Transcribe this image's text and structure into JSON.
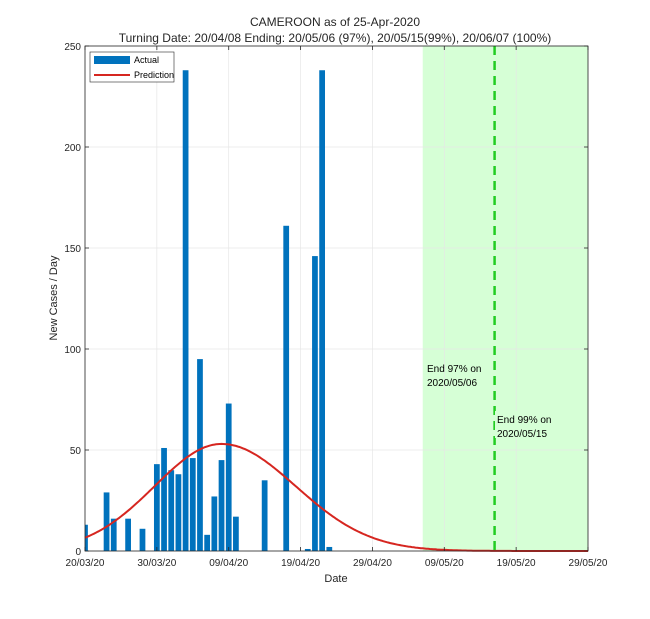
{
  "chart_data": {
    "type": "bar",
    "title": "CAMEROON as of 25-Apr-2020",
    "subtitle": "Turning Date: 20/04/08  Ending: 20/05/06 (97%), 20/05/15(99%), 20/06/07 (100%)",
    "xlabel": "Date",
    "ylabel": "New Cases / Day",
    "x_range_days": [
      0,
      70
    ],
    "ylim": [
      0,
      250
    ],
    "y_ticks": [
      0,
      50,
      100,
      150,
      200,
      250
    ],
    "x_ticks": [
      {
        "day": 0,
        "label": "20/03/20"
      },
      {
        "day": 10,
        "label": "30/03/20"
      },
      {
        "day": 20,
        "label": "09/04/20"
      },
      {
        "day": 30,
        "label": "19/04/20"
      },
      {
        "day": 40,
        "label": "29/04/20"
      },
      {
        "day": 50,
        "label": "09/05/20"
      },
      {
        "day": 60,
        "label": "19/05/20"
      },
      {
        "day": 70,
        "label": "29/05/20"
      }
    ],
    "series": [
      {
        "name": "Actual",
        "kind": "bar",
        "color": "#0072BD",
        "days": [
          0,
          3,
          4,
          6,
          8,
          10,
          11,
          12,
          13,
          14,
          15,
          16,
          17,
          18,
          19,
          20,
          21,
          22,
          25,
          28,
          31,
          32,
          33,
          34
        ],
        "values": [
          13,
          29,
          16,
          16,
          11,
          43,
          51,
          40,
          38,
          238,
          46,
          95,
          8,
          27,
          45,
          73,
          17,
          0,
          35,
          161,
          1,
          146,
          238,
          2
        ]
      },
      {
        "name": "Prediction",
        "kind": "line",
        "color": "#D62620",
        "peak_day": 19,
        "peak_value": 53,
        "start_value": 8,
        "sigma_left": 9.3,
        "sigma_right": 10.3
      }
    ],
    "shaded_region": {
      "from_day": 47,
      "to_day": 70,
      "color": "#D6FFD6"
    },
    "vertical_line": {
      "day": 57,
      "color": "#22CC22",
      "style": "dashed"
    },
    "annotations": [
      {
        "text_lines": [
          "End 97% on",
          "2020/05/06"
        ]
      },
      {
        "text_lines": [
          "End 99% on",
          "2020/05/15"
        ]
      }
    ],
    "legend": {
      "placement": "top-left"
    }
  }
}
